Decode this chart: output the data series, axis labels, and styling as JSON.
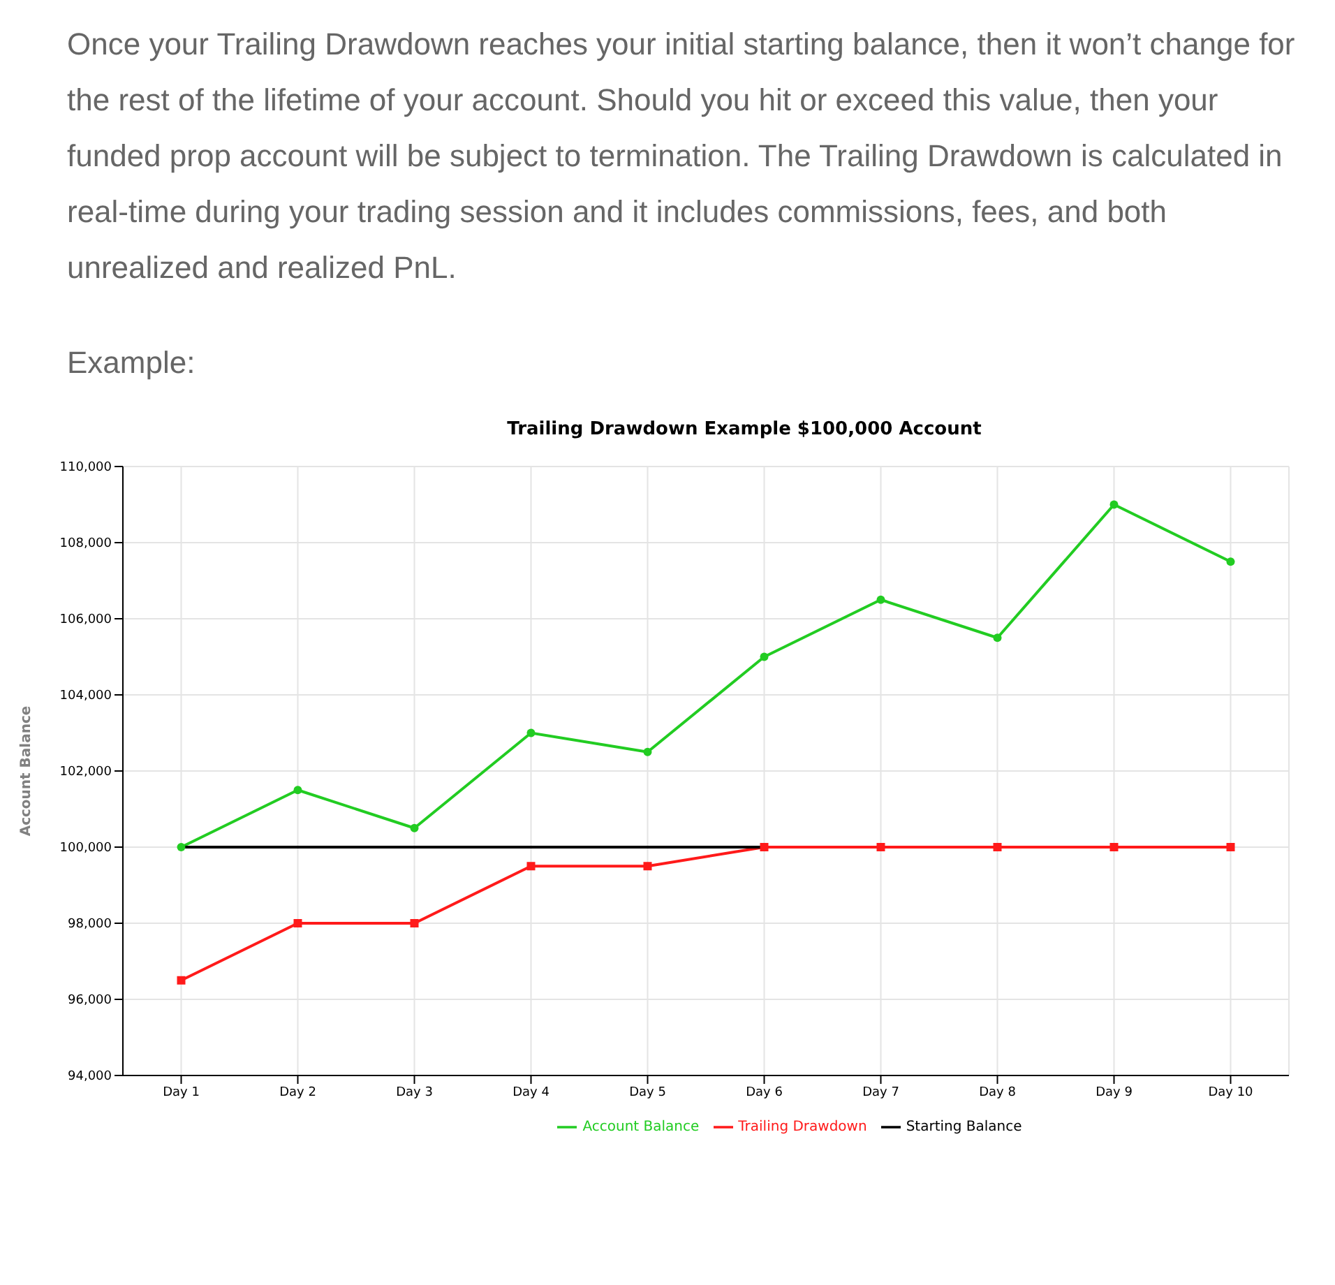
{
  "chart_data": {
    "type": "line",
    "title": "Trailing Drawdown Example $100,000 Account",
    "ylabel": "Account Balance",
    "annotations": [
      "Once your Trailing  Drawdown reaches your initial starting balance, then it won’t change for the rest of the lifetime of your account.  Should you hit or exceed this value, then your funded prop account will be subject to termination. The Trailing Drawdown is calculated in real-time during your trading session and it includes commissions, fees, and both unrealized and realized PnL.",
      "Example:"
    ],
    "categories": [
      "Day 1",
      "Day 2",
      "Day 3",
      "Day 4",
      "Day 5",
      "Day 6",
      "Day 7",
      "Day 8",
      "Day 9",
      "Day 10"
    ],
    "series": [
      {
        "name": "Account Balance",
        "color": "#22cc22",
        "marker": "circle",
        "values": [
          100000,
          101500,
          100500,
          103000,
          102500,
          105000,
          106500,
          105500,
          109000,
          107500
        ]
      },
      {
        "name": "Trailing Drawdown",
        "color": "#ff1a1a",
        "marker": "square",
        "values": [
          96500,
          98000,
          98000,
          99500,
          99500,
          100000,
          100000,
          100000,
          100000,
          100000
        ]
      },
      {
        "name": "Starting Balance",
        "color": "#000000",
        "marker": "none",
        "values": [
          100000,
          100000,
          100000,
          100000,
          100000,
          100000,
          null,
          null,
          null,
          null
        ]
      }
    ],
    "ylim": [
      94000,
      110000
    ],
    "yticks": [
      {
        "value": 94000,
        "label": "94,000"
      },
      {
        "value": 96000,
        "label": "96,000"
      },
      {
        "value": 98000,
        "label": "98,000"
      },
      {
        "value": 100000,
        "label": "100,000"
      },
      {
        "value": 102000,
        "label": "102,000"
      },
      {
        "value": 104000,
        "label": "104,000"
      },
      {
        "value": 106000,
        "label": "106,000"
      },
      {
        "value": 108000,
        "label": "108,000"
      },
      {
        "value": 110000,
        "label": "110,000"
      }
    ],
    "grid": true,
    "legend": "bottom",
    "line_style": "solid"
  }
}
